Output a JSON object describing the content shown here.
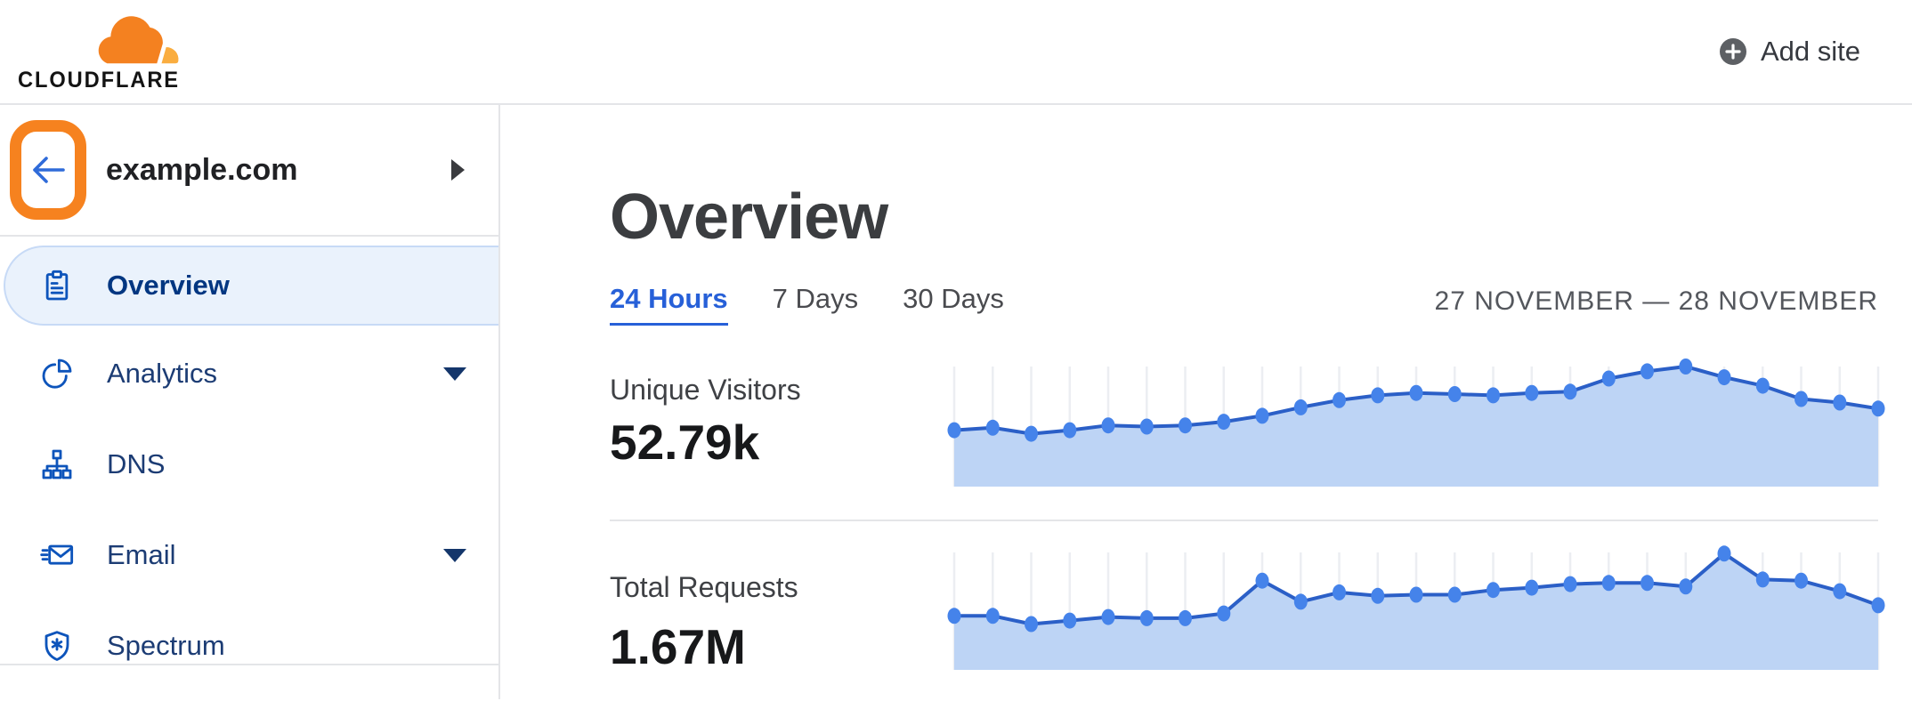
{
  "header": {
    "logo_text": "CLOUDFLARE",
    "add_site_label": "Add site"
  },
  "sidebar": {
    "site_name": "example.com",
    "items": [
      {
        "label": "Overview",
        "icon": "clipboard-icon",
        "selected": true,
        "has_caret": false
      },
      {
        "label": "Analytics",
        "icon": "pie-chart-icon",
        "selected": false,
        "has_caret": true
      },
      {
        "label": "DNS",
        "icon": "sitemap-icon",
        "selected": false,
        "has_caret": false
      },
      {
        "label": "Email",
        "icon": "email-icon",
        "selected": false,
        "has_caret": true
      },
      {
        "label": "Spectrum",
        "icon": "shield-icon",
        "selected": false,
        "has_caret": false
      }
    ]
  },
  "main": {
    "title": "Overview",
    "tabs": [
      {
        "label": "24 Hours",
        "active": true
      },
      {
        "label": "7 Days",
        "active": false
      },
      {
        "label": "30 Days",
        "active": false
      }
    ],
    "date_range": "27 NOVEMBER — 28 NOVEMBER",
    "metrics": [
      {
        "label": "Unique Visitors",
        "value": "52.79k"
      },
      {
        "label": "Total Requests",
        "value": "1.67M"
      }
    ]
  },
  "colors": {
    "brand_orange": "#f6821f",
    "logo_orange_dark": "#f48120",
    "logo_orange_light": "#faad3f",
    "link_blue": "#2760d8",
    "nav_icon_blue": "#0d54bb",
    "nav_text_navy": "#1c3c74",
    "selected_nav_text": "#003681",
    "divider_gray": "#e4e5e8"
  },
  "chart_data": [
    {
      "type": "area",
      "title": "Unique Visitors",
      "total_label": "52.79k",
      "x_description": "25 hourly points, 24 Hours view, 27–28 November (no axis labels shown)",
      "values_relative": [
        0.47,
        0.49,
        0.44,
        0.47,
        0.51,
        0.5,
        0.51,
        0.54,
        0.59,
        0.66,
        0.72,
        0.76,
        0.78,
        0.77,
        0.76,
        0.78,
        0.79,
        0.9,
        0.96,
        1.0,
        0.91,
        0.84,
        0.73,
        0.7,
        0.65
      ],
      "ylim": [
        0,
        1
      ],
      "legend": "none",
      "grid": "vertical line per point",
      "line_color": "#2b5fc7",
      "dot_color": "#4583ea",
      "fill_color": "#bdd4f5",
      "grid_color": "#eceef2"
    },
    {
      "type": "area",
      "title": "Total Requests",
      "total_label": "1.67M",
      "x_description": "25 hourly points, 24 Hours view, 27–28 November (no axis labels shown)",
      "values_relative": [
        0.46,
        0.46,
        0.39,
        0.42,
        0.45,
        0.44,
        0.44,
        0.48,
        0.76,
        0.58,
        0.66,
        0.63,
        0.64,
        0.64,
        0.68,
        0.7,
        0.73,
        0.74,
        0.74,
        0.71,
        0.99,
        0.77,
        0.76,
        0.67,
        0.55
      ],
      "ylim": [
        0,
        1
      ],
      "legend": "none",
      "grid": "vertical line per point",
      "line_color": "#2b5fc7",
      "dot_color": "#4583ea",
      "fill_color": "#bdd4f5",
      "grid_color": "#eceef2"
    }
  ]
}
